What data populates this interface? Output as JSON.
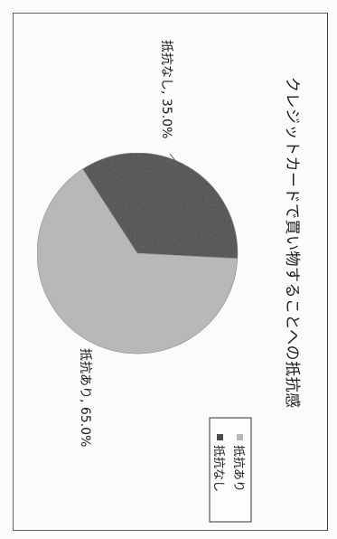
{
  "chart_data": {
    "type": "pie",
    "title": "クレジットカードで買い物することへの抵抗感",
    "slices": [
      {
        "label": "抵抗あり",
        "value": 65.0,
        "color": "#b8b8b8",
        "data_label": "抵抗あり, 65.0%"
      },
      {
        "label": "抵抗なし",
        "value": 35.0,
        "color": "#4a4a4a",
        "data_label": "抵抗なし, 35.0%"
      }
    ],
    "legend": {
      "placement": "bottom-right",
      "entries": [
        "抵抗あり",
        "抵抗なし"
      ]
    },
    "orientation": "rotated-90-clockwise"
  }
}
